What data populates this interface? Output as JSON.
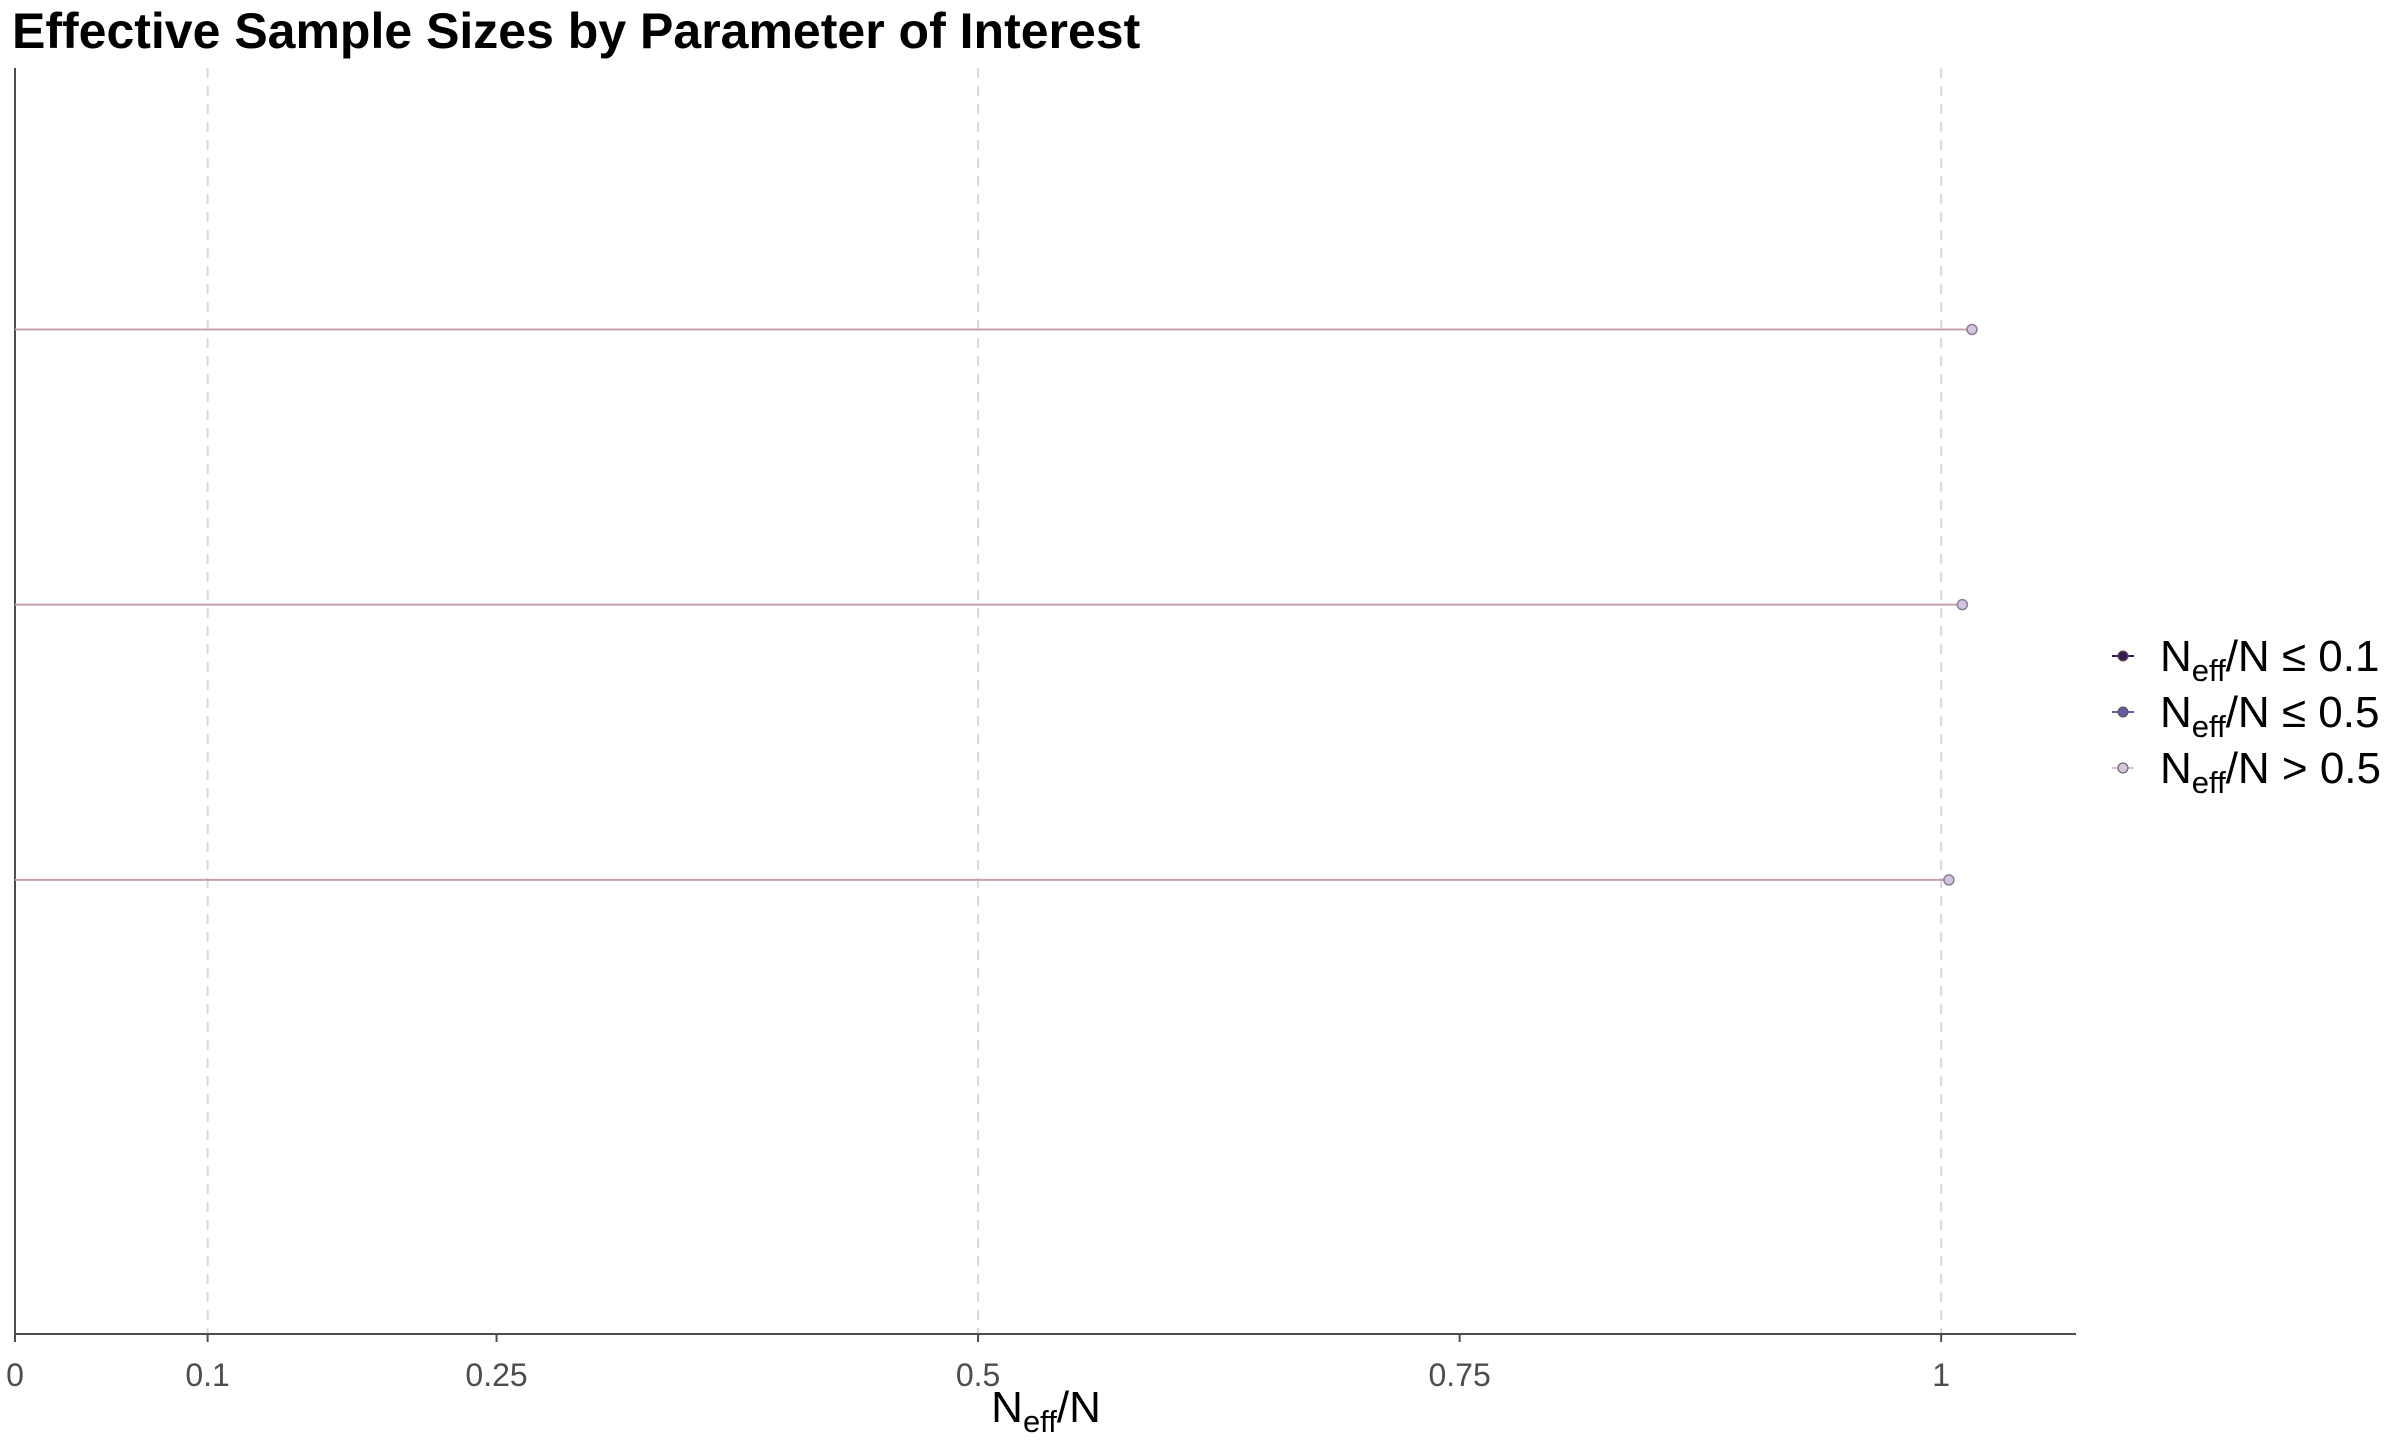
{
  "chart_data": {
    "type": "scatter",
    "title": "Effective Sample Sizes by Parameter of Interest",
    "xlabel": {
      "main": "N",
      "sub": "eff",
      "tail": "/N"
    },
    "ylabel": "",
    "xlim": [
      0,
      1.07
    ],
    "x_ticks": [
      {
        "value": 0,
        "label": "0"
      },
      {
        "value": 0.1,
        "label": "0.1"
      },
      {
        "value": 0.25,
        "label": "0.25"
      },
      {
        "value": 0.5,
        "label": "0.5"
      },
      {
        "value": 0.75,
        "label": "0.75"
      },
      {
        "value": 1,
        "label": "1"
      }
    ],
    "grid": {
      "x": true,
      "y": false,
      "style": "dashed",
      "lines_at": [
        0.1,
        0.5,
        1
      ]
    },
    "points": [
      {
        "x": 1.016,
        "category": "Neff/N > 0.5"
      },
      {
        "x": 1.011,
        "category": "Neff/N > 0.5"
      },
      {
        "x": 1.004,
        "category": "Neff/N > 0.5"
      }
    ],
    "legend": {
      "placement": "right",
      "entries": [
        {
          "main": "N",
          "sub": "eff",
          "tail": "/N ≤ 0.1",
          "color": "#3b1a4f"
        },
        {
          "main": "N",
          "sub": "eff",
          "tail": "/N ≤ 0.5",
          "color": "#6b5a9e"
        },
        {
          "main": "N",
          "sub": "eff",
          "tail": "/N > 0.5",
          "color": "#d4c4e0"
        }
      ]
    },
    "colors": {
      "segment": "#c8a0b0",
      "point_fill": "#d4c4e0",
      "point_stroke": "#8c7a9a",
      "grid": "#d9d9d9",
      "axis": "#4d4d4d"
    }
  }
}
